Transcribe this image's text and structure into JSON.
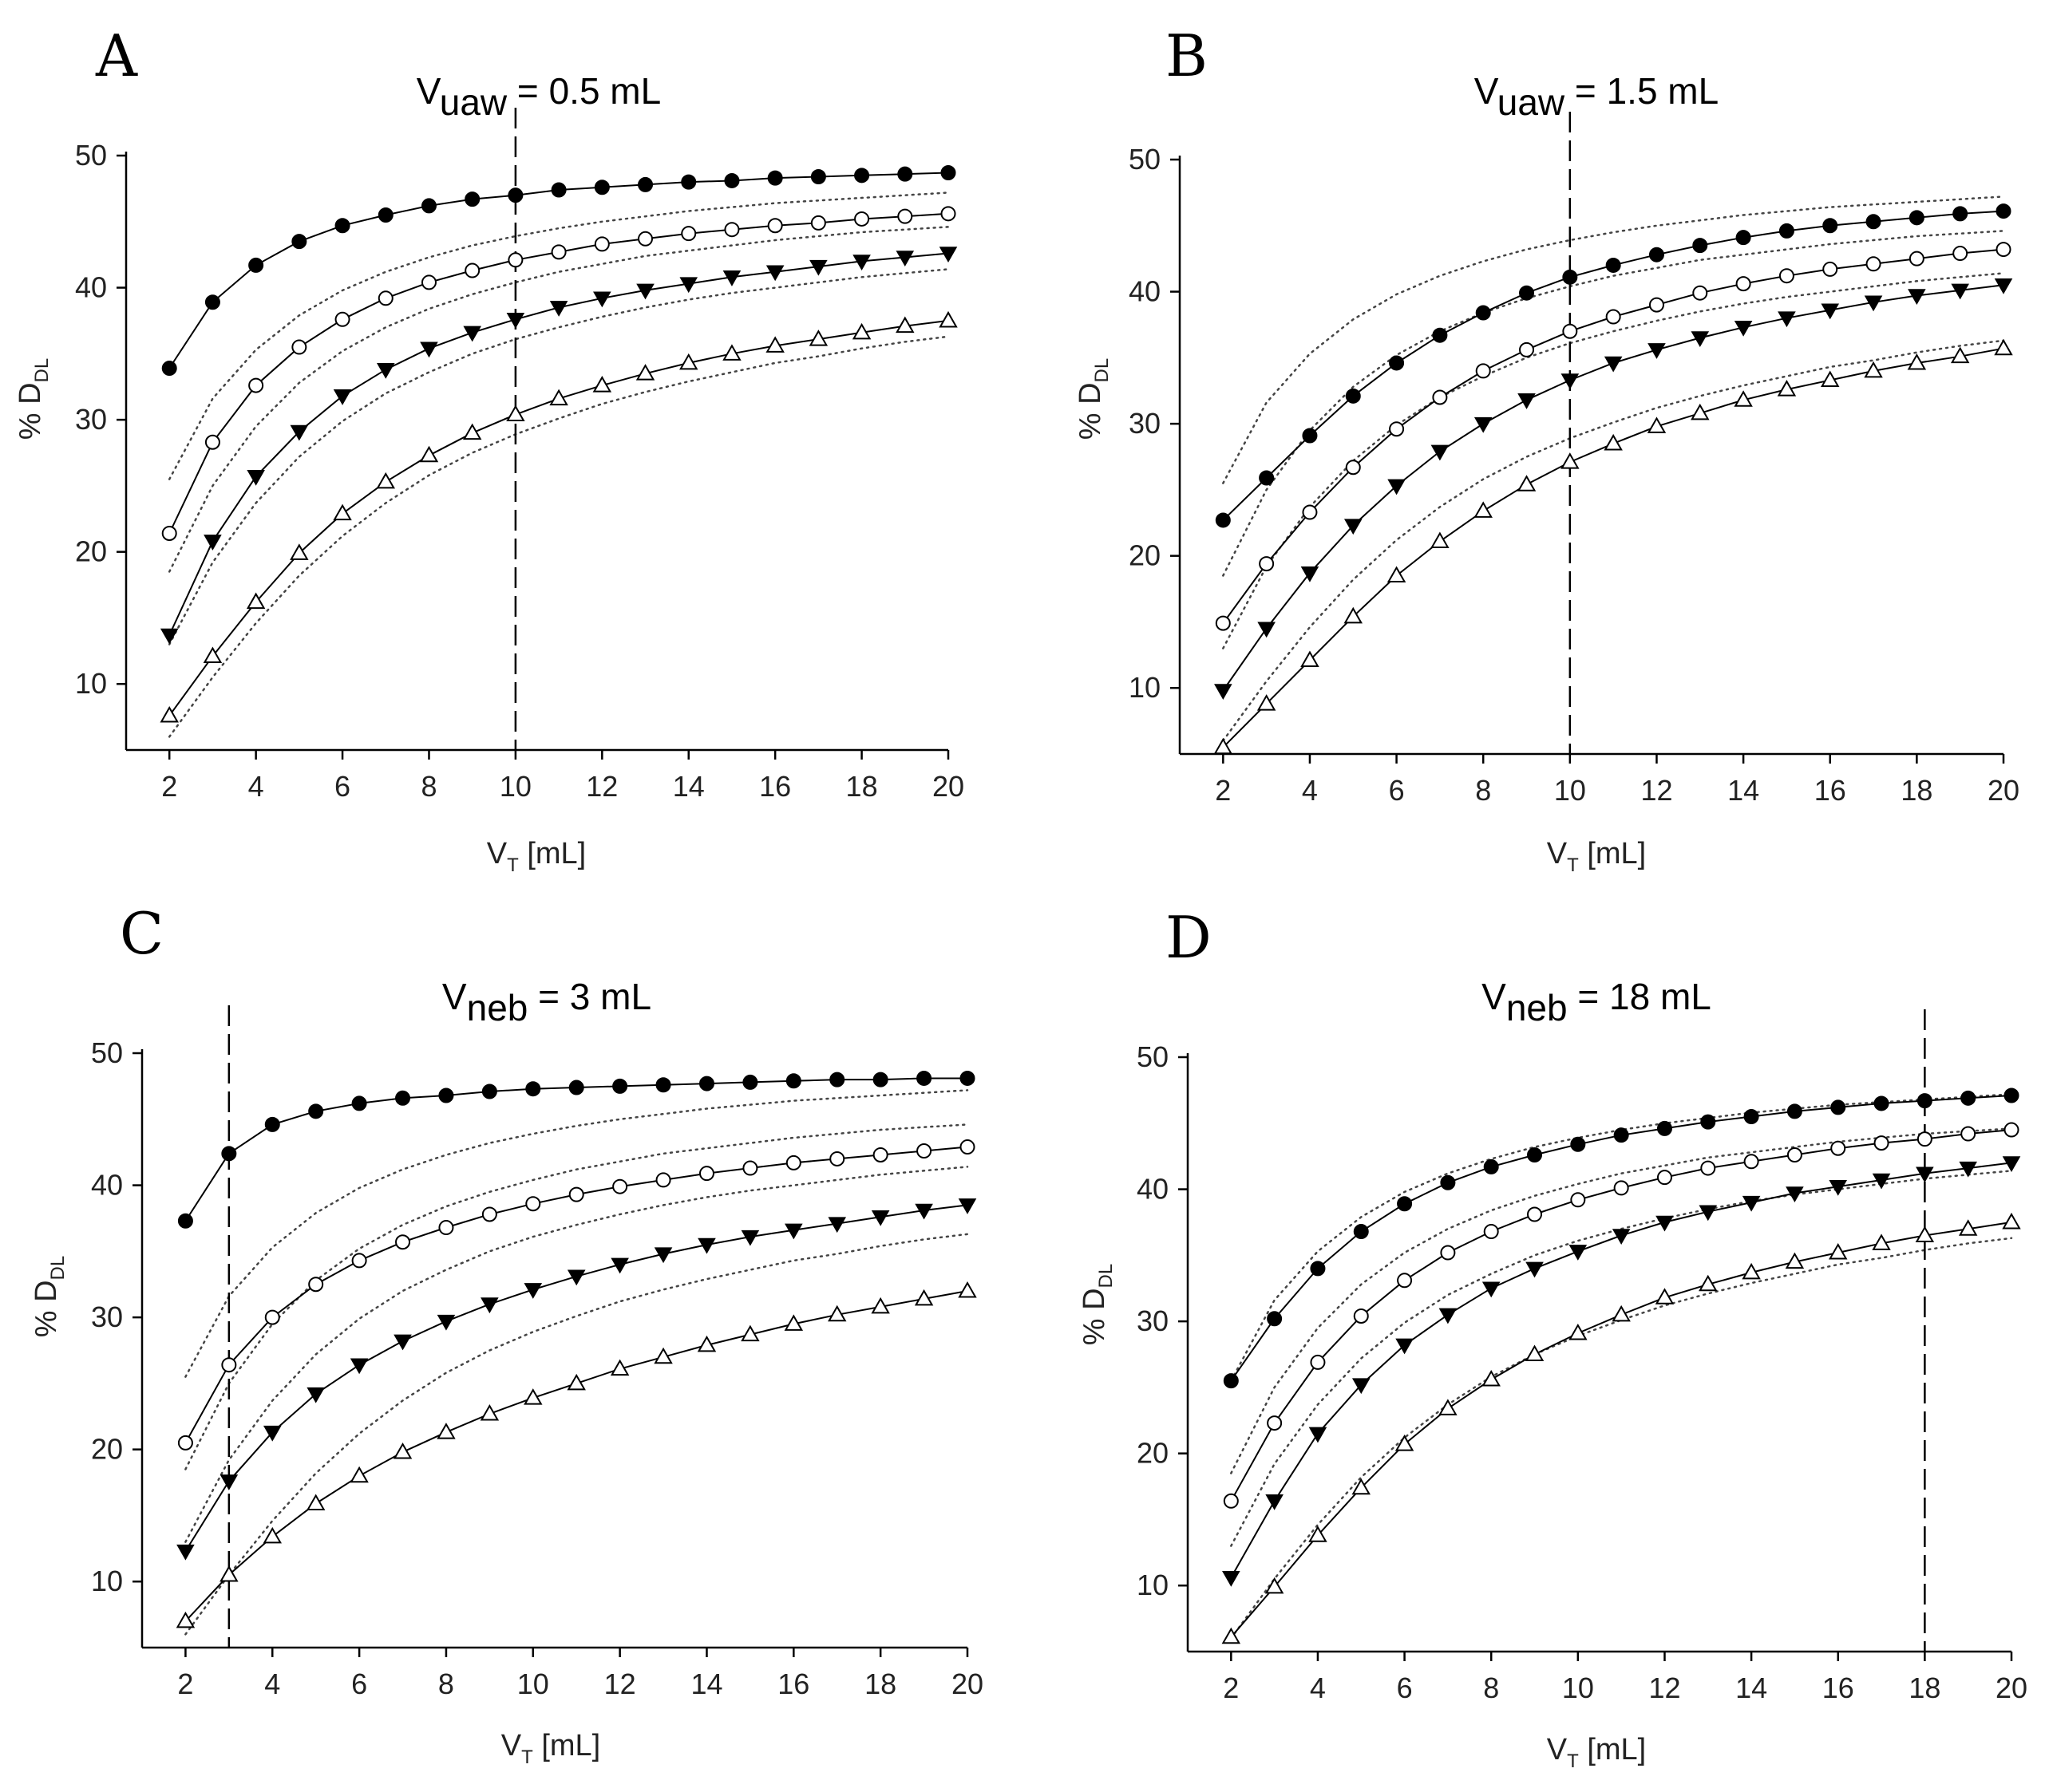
{
  "chart_data": [
    {
      "panel": "A",
      "type": "line",
      "title_main": "V",
      "title_sub": "uaw",
      "title_rest": " = 0.5 mL",
      "xlabel_main": "V",
      "xlabel_sub": "T",
      "xlabel_rest": " [mL]",
      "ylabel_main": "% D",
      "ylabel_sub": "DL",
      "xlim": [
        1,
        20
      ],
      "ylim": [
        5,
        50
      ],
      "xticks": [
        2,
        4,
        6,
        8,
        10,
        12,
        14,
        16,
        18,
        20
      ],
      "yticks": [
        10,
        20,
        30,
        40,
        50
      ],
      "vline_x": 10,
      "x": [
        2,
        3,
        4,
        5,
        6,
        7,
        8,
        9,
        10,
        11,
        12,
        13,
        14,
        15,
        16,
        17,
        18,
        19,
        20
      ],
      "series": [
        {
          "name": "filled-circle",
          "marker": "circle-filled",
          "values": [
            33.9,
            38.9,
            41.7,
            43.5,
            44.7,
            45.5,
            46.2,
            46.7,
            47.0,
            47.4,
            47.6,
            47.8,
            48.0,
            48.1,
            48.3,
            48.4,
            48.5,
            48.6,
            48.7
          ]
        },
        {
          "name": "open-circle",
          "marker": "circle-open",
          "values": [
            21.4,
            28.3,
            32.6,
            35.5,
            37.6,
            39.2,
            40.4,
            41.3,
            42.1,
            42.7,
            43.3,
            43.7,
            44.1,
            44.4,
            44.7,
            44.9,
            45.2,
            45.4,
            45.6
          ]
        },
        {
          "name": "filled-triangle-down",
          "marker": "triangle-down-filled",
          "values": [
            13.7,
            20.8,
            25.7,
            29.1,
            31.8,
            33.8,
            35.4,
            36.6,
            37.6,
            38.5,
            39.2,
            39.8,
            40.3,
            40.8,
            41.2,
            41.6,
            42.0,
            42.3,
            42.6
          ]
        },
        {
          "name": "open-triangle-up",
          "marker": "triangle-up-open",
          "values": [
            7.6,
            12.1,
            16.2,
            19.9,
            22.9,
            25.3,
            27.3,
            29.0,
            30.4,
            31.6,
            32.6,
            33.5,
            34.3,
            35.0,
            35.6,
            36.1,
            36.6,
            37.1,
            37.5
          ]
        }
      ],
      "model_series": [
        {
          "values": [
            25.5,
            31.6,
            35.3,
            37.9,
            39.8,
            41.2,
            42.3,
            43.2,
            43.9,
            44.5,
            45.0,
            45.4,
            45.8,
            46.1,
            46.4,
            46.6,
            46.8,
            47.0,
            47.2
          ]
        },
        {
          "values": [
            18.5,
            25.0,
            29.5,
            32.8,
            35.2,
            37.0,
            38.4,
            39.5,
            40.4,
            41.2,
            41.8,
            42.4,
            42.8,
            43.2,
            43.6,
            43.9,
            44.2,
            44.4,
            44.6
          ]
        },
        {
          "values": [
            13.0,
            19.2,
            23.7,
            27.2,
            29.9,
            32.0,
            33.6,
            35.0,
            36.1,
            37.0,
            37.8,
            38.5,
            39.1,
            39.6,
            40.0,
            40.4,
            40.8,
            41.1,
            41.4
          ]
        },
        {
          "values": [
            6.0,
            10.5,
            14.6,
            18.2,
            21.2,
            23.7,
            25.8,
            27.5,
            28.9,
            30.1,
            31.2,
            32.1,
            32.9,
            33.6,
            34.3,
            34.8,
            35.4,
            35.9,
            36.3
          ]
        }
      ]
    },
    {
      "panel": "B",
      "type": "line",
      "title_main": "V",
      "title_sub": "uaw",
      "title_rest": " = 1.5 mL",
      "xlabel_main": "V",
      "xlabel_sub": "T",
      "xlabel_rest": " [mL]",
      "ylabel_main": "% D",
      "ylabel_sub": "DL",
      "xlim": [
        1,
        20
      ],
      "ylim": [
        5,
        50
      ],
      "xticks": [
        2,
        4,
        6,
        8,
        10,
        12,
        14,
        16,
        18,
        20
      ],
      "yticks": [
        10,
        20,
        30,
        40,
        50
      ],
      "vline_x": 10,
      "x": [
        2,
        3,
        4,
        5,
        6,
        7,
        8,
        9,
        10,
        11,
        12,
        13,
        14,
        15,
        16,
        17,
        18,
        19,
        20
      ],
      "series": [
        {
          "name": "filled-circle",
          "marker": "circle-filled",
          "values": [
            22.7,
            25.9,
            29.1,
            32.1,
            34.6,
            36.7,
            38.4,
            39.9,
            41.1,
            42.0,
            42.8,
            43.5,
            44.1,
            44.6,
            45.0,
            45.3,
            45.6,
            45.9,
            46.1
          ]
        },
        {
          "name": "open-circle",
          "marker": "circle-open",
          "values": [
            14.9,
            19.4,
            23.3,
            26.7,
            29.6,
            32.0,
            34.0,
            35.6,
            37.0,
            38.1,
            39.0,
            39.9,
            40.6,
            41.2,
            41.7,
            42.1,
            42.5,
            42.9,
            43.2
          ]
        },
        {
          "name": "filled-triangle-down",
          "marker": "triangle-down-filled",
          "values": [
            9.8,
            14.5,
            18.7,
            22.3,
            25.3,
            27.9,
            30.0,
            31.8,
            33.3,
            34.6,
            35.6,
            36.5,
            37.3,
            38.0,
            38.6,
            39.2,
            39.7,
            40.1,
            40.5
          ]
        },
        {
          "name": "open-triangle-up",
          "marker": "triangle-up-open",
          "values": [
            5.5,
            8.8,
            12.1,
            15.4,
            18.5,
            21.1,
            23.4,
            25.4,
            27.1,
            28.5,
            29.8,
            30.8,
            31.8,
            32.6,
            33.3,
            34.0,
            34.6,
            35.1,
            35.7
          ]
        }
      ],
      "model_series": [
        {
          "values": [
            25.5,
            31.6,
            35.3,
            37.9,
            39.8,
            41.2,
            42.3,
            43.2,
            43.9,
            44.5,
            45.0,
            45.4,
            45.8,
            46.1,
            46.4,
            46.6,
            46.8,
            47.0,
            47.2
          ]
        },
        {
          "values": [
            18.5,
            25.0,
            29.5,
            32.8,
            35.2,
            37.0,
            38.4,
            39.5,
            40.4,
            41.2,
            41.8,
            42.4,
            42.8,
            43.2,
            43.6,
            43.9,
            44.2,
            44.4,
            44.6
          ]
        },
        {
          "values": [
            13.0,
            19.2,
            23.7,
            27.2,
            29.9,
            32.0,
            33.6,
            35.0,
            36.1,
            37.0,
            37.8,
            38.5,
            39.1,
            39.6,
            40.0,
            40.4,
            40.8,
            41.1,
            41.4
          ]
        },
        {
          "values": [
            6.0,
            10.5,
            14.6,
            18.2,
            21.2,
            23.7,
            25.8,
            27.5,
            28.9,
            30.1,
            31.2,
            32.1,
            32.9,
            33.6,
            34.3,
            34.8,
            35.4,
            35.9,
            36.3
          ]
        }
      ]
    },
    {
      "panel": "C",
      "type": "line",
      "title_main": "V",
      "title_sub": "neb",
      "title_rest": " = 3 mL",
      "xlabel_main": "V",
      "xlabel_sub": "T",
      "xlabel_rest": " [mL]",
      "ylabel_main": "% D",
      "ylabel_sub": "DL",
      "xlim": [
        1,
        20
      ],
      "ylim": [
        5,
        50
      ],
      "xticks": [
        2,
        4,
        6,
        8,
        10,
        12,
        14,
        16,
        18,
        20
      ],
      "yticks": [
        10,
        20,
        30,
        40,
        50
      ],
      "vline_x": 3,
      "x": [
        2,
        3,
        4,
        5,
        6,
        7,
        8,
        9,
        10,
        11,
        12,
        13,
        14,
        15,
        16,
        17,
        18,
        19,
        20
      ],
      "series": [
        {
          "name": "filled-circle",
          "marker": "circle-filled",
          "values": [
            37.3,
            42.4,
            44.6,
            45.6,
            46.2,
            46.6,
            46.8,
            47.1,
            47.3,
            47.4,
            47.5,
            47.6,
            47.7,
            47.8,
            47.9,
            48.0,
            48.0,
            48.1,
            48.1
          ]
        },
        {
          "name": "open-circle",
          "marker": "circle-open",
          "values": [
            20.5,
            26.4,
            30.0,
            32.5,
            34.3,
            35.7,
            36.8,
            37.8,
            38.6,
            39.3,
            39.9,
            40.4,
            40.9,
            41.3,
            41.7,
            42.0,
            42.3,
            42.6,
            42.9
          ]
        },
        {
          "name": "filled-triangle-down",
          "marker": "triangle-down-filled",
          "values": [
            12.3,
            17.6,
            21.3,
            24.2,
            26.4,
            28.2,
            29.7,
            31.0,
            32.1,
            33.1,
            34.0,
            34.8,
            35.5,
            36.1,
            36.6,
            37.1,
            37.6,
            38.1,
            38.5
          ]
        },
        {
          "name": "open-triangle-up",
          "marker": "triangle-up-open",
          "values": [
            7.0,
            10.5,
            13.4,
            15.9,
            18.0,
            19.8,
            21.3,
            22.7,
            23.9,
            25.0,
            26.1,
            27.0,
            27.9,
            28.7,
            29.5,
            30.2,
            30.8,
            31.4,
            32.0
          ]
        }
      ],
      "model_series": [
        {
          "values": [
            25.5,
            31.6,
            35.3,
            37.9,
            39.8,
            41.2,
            42.3,
            43.2,
            43.9,
            44.5,
            45.0,
            45.4,
            45.8,
            46.1,
            46.4,
            46.6,
            46.8,
            47.0,
            47.2
          ]
        },
        {
          "values": [
            18.5,
            25.0,
            29.5,
            32.8,
            35.2,
            37.0,
            38.4,
            39.5,
            40.4,
            41.2,
            41.8,
            42.4,
            42.8,
            43.2,
            43.6,
            43.9,
            44.2,
            44.4,
            44.6
          ]
        },
        {
          "values": [
            13.0,
            19.2,
            23.7,
            27.2,
            29.9,
            32.0,
            33.6,
            35.0,
            36.1,
            37.0,
            37.8,
            38.5,
            39.1,
            39.6,
            40.0,
            40.4,
            40.8,
            41.1,
            41.4
          ]
        },
        {
          "values": [
            6.0,
            10.5,
            14.6,
            18.2,
            21.2,
            23.7,
            25.8,
            27.5,
            28.9,
            30.1,
            31.2,
            32.1,
            32.9,
            33.6,
            34.3,
            34.8,
            35.4,
            35.9,
            36.3
          ]
        }
      ]
    },
    {
      "panel": "D",
      "type": "line",
      "title_main": "V",
      "title_sub": "neb",
      "title_rest": " = 18 mL",
      "xlabel_main": "V",
      "xlabel_sub": "T",
      "xlabel_rest": " [mL]",
      "ylabel_main": "% D",
      "ylabel_sub": "DL",
      "xlim": [
        1,
        20
      ],
      "ylim": [
        5,
        50
      ],
      "xticks": [
        2,
        4,
        6,
        8,
        10,
        12,
        14,
        16,
        18,
        20
      ],
      "yticks": [
        10,
        20,
        30,
        40,
        50
      ],
      "vline_x": 18,
      "x": [
        2,
        3,
        4,
        5,
        6,
        7,
        8,
        9,
        10,
        11,
        12,
        13,
        14,
        15,
        16,
        17,
        18,
        19,
        20
      ],
      "series": [
        {
          "name": "filled-circle",
          "marker": "circle-filled",
          "values": [
            25.5,
            30.2,
            34.0,
            36.8,
            38.9,
            40.5,
            41.7,
            42.6,
            43.4,
            44.1,
            44.6,
            45.1,
            45.5,
            45.9,
            46.2,
            46.5,
            46.7,
            46.9,
            47.1
          ]
        },
        {
          "name": "open-circle",
          "marker": "circle-open",
          "values": [
            16.4,
            22.3,
            26.9,
            30.4,
            33.1,
            35.2,
            36.8,
            38.1,
            39.2,
            40.1,
            40.9,
            41.6,
            42.1,
            42.6,
            43.1,
            43.5,
            43.8,
            44.2,
            44.5
          ]
        },
        {
          "name": "filled-triangle-down",
          "marker": "triangle-down-filled",
          "values": [
            10.6,
            16.4,
            21.5,
            25.2,
            28.2,
            30.5,
            32.5,
            34.0,
            35.3,
            36.5,
            37.5,
            38.3,
            39.0,
            39.7,
            40.2,
            40.7,
            41.2,
            41.6,
            42.0
          ]
        },
        {
          "name": "open-triangle-up",
          "marker": "triangle-up-open",
          "values": [
            6.1,
            9.9,
            13.8,
            17.4,
            20.7,
            23.4,
            25.6,
            27.5,
            29.1,
            30.5,
            31.8,
            32.8,
            33.7,
            34.5,
            35.2,
            35.9,
            36.5,
            37.0,
            37.5
          ]
        }
      ],
      "model_series": [
        {
          "values": [
            25.5,
            31.6,
            35.3,
            37.9,
            39.8,
            41.2,
            42.3,
            43.2,
            43.9,
            44.5,
            45.0,
            45.4,
            45.8,
            46.1,
            46.4,
            46.6,
            46.8,
            47.0,
            47.2
          ]
        },
        {
          "values": [
            18.5,
            25.0,
            29.5,
            32.8,
            35.2,
            37.0,
            38.4,
            39.5,
            40.4,
            41.2,
            41.8,
            42.4,
            42.8,
            43.2,
            43.6,
            43.9,
            44.2,
            44.4,
            44.6
          ]
        },
        {
          "values": [
            13.0,
            19.2,
            23.7,
            27.2,
            29.9,
            32.0,
            33.6,
            35.0,
            36.1,
            37.0,
            37.8,
            38.5,
            39.1,
            39.6,
            40.0,
            40.4,
            40.8,
            41.1,
            41.4
          ]
        },
        {
          "values": [
            6.0,
            10.5,
            14.6,
            18.2,
            21.2,
            23.7,
            25.8,
            27.5,
            28.9,
            30.1,
            31.2,
            32.1,
            32.9,
            33.6,
            34.3,
            34.8,
            35.4,
            35.9,
            36.3
          ]
        }
      ]
    }
  ]
}
